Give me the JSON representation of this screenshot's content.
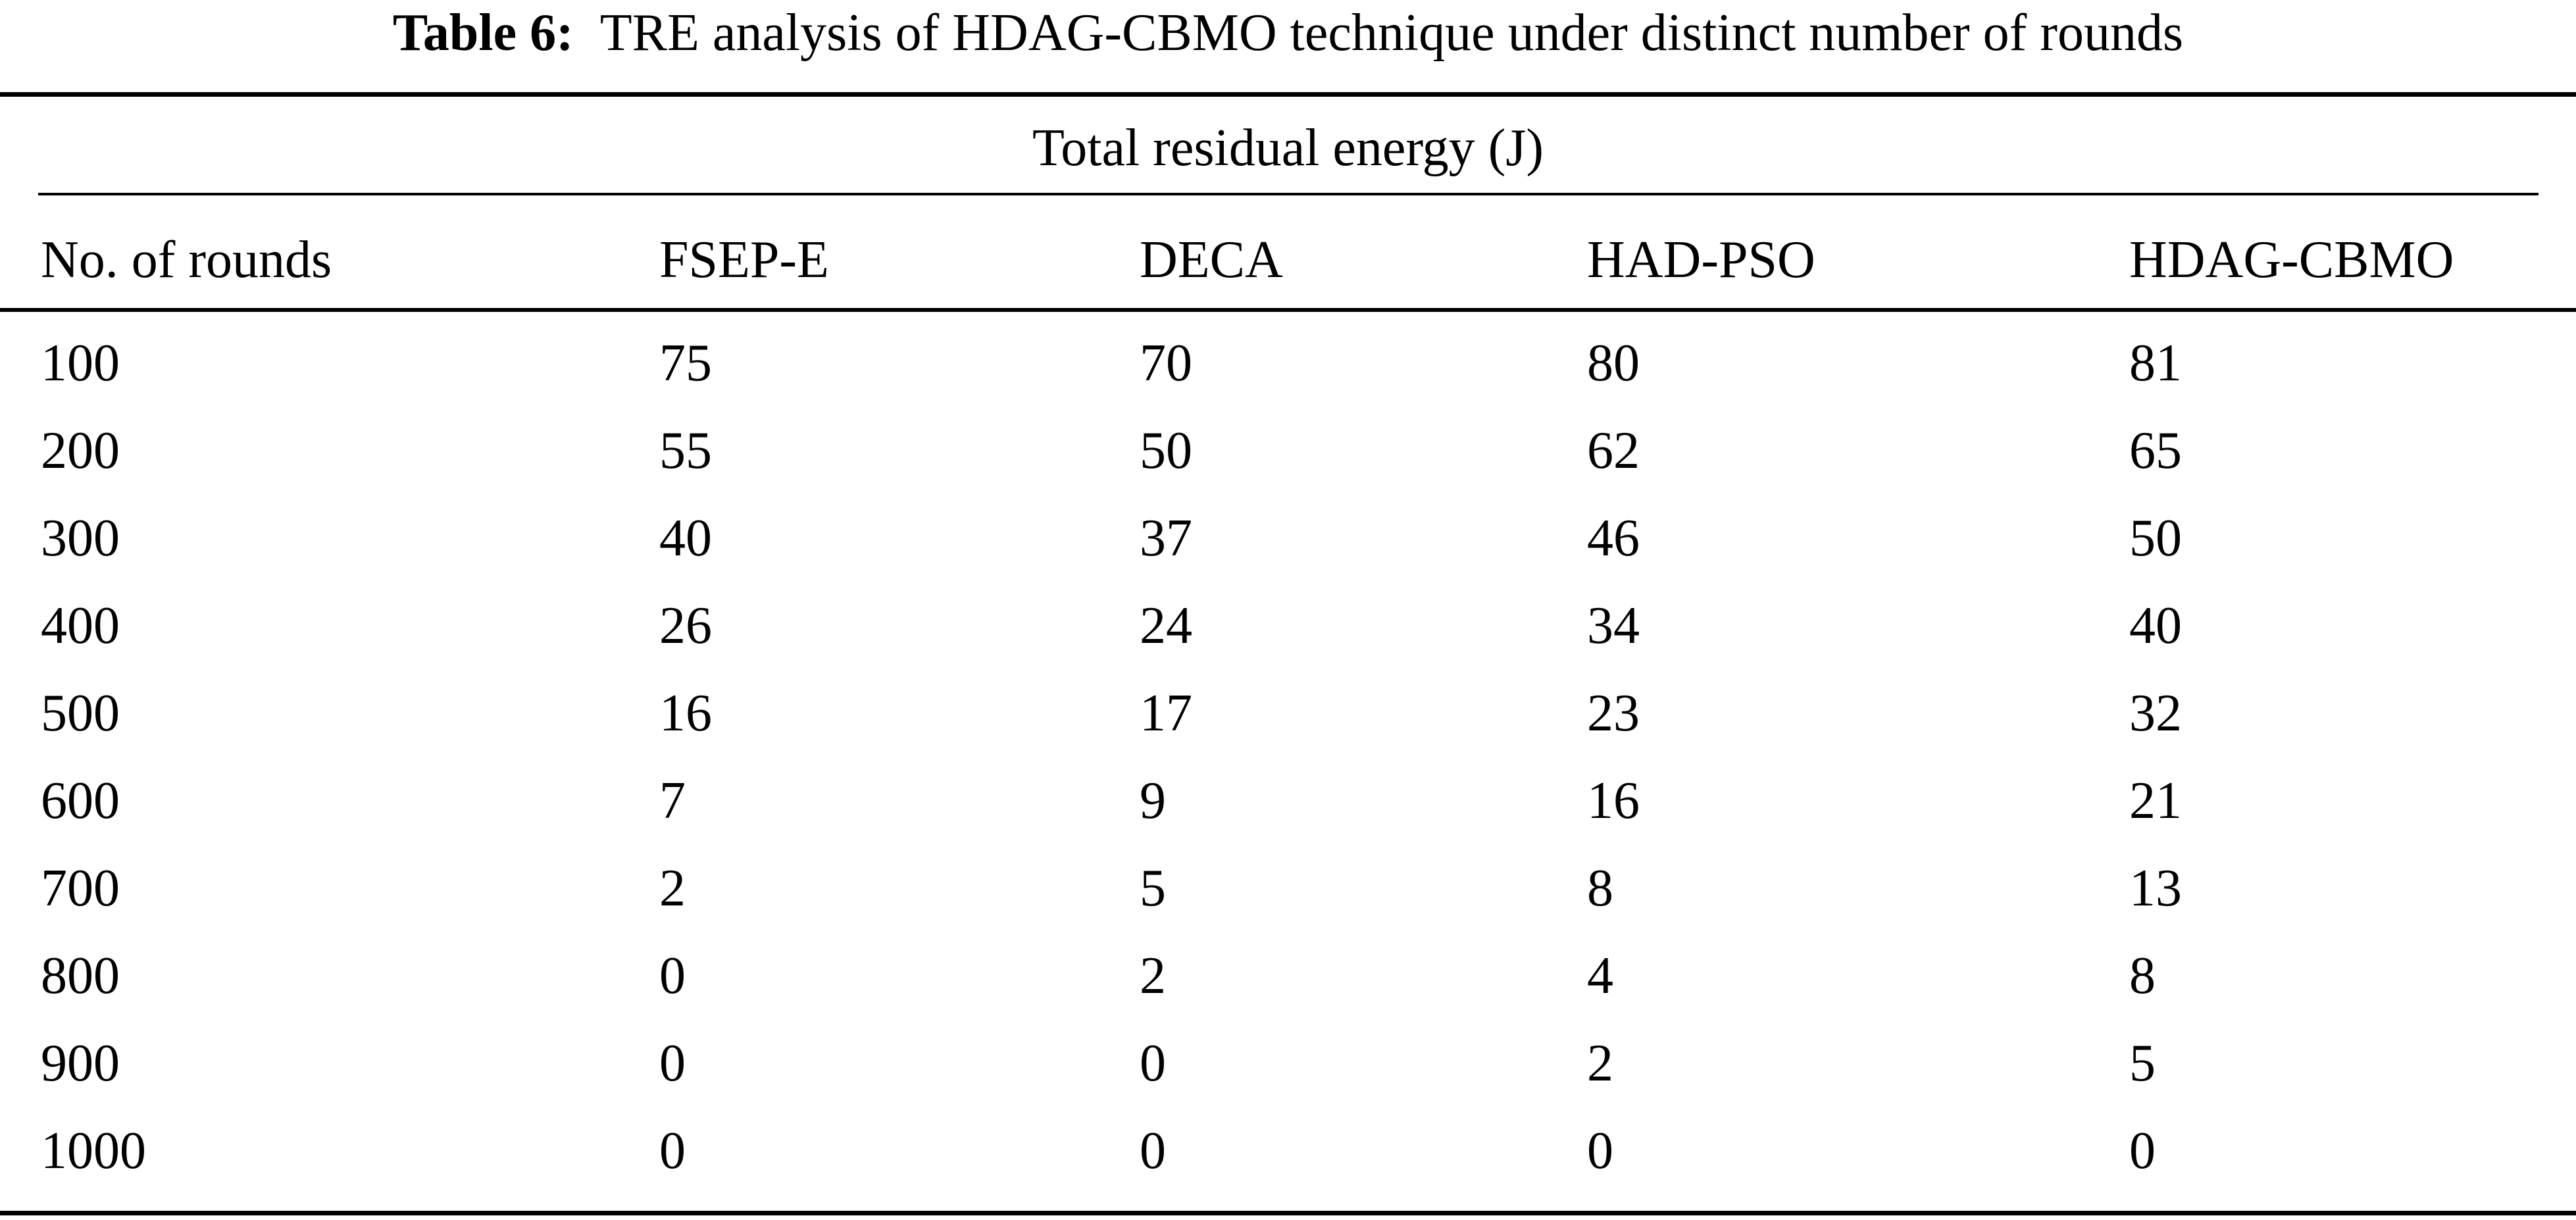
{
  "caption": {
    "label": "Table 6:",
    "text": "TRE analysis of HDAG-CBMO technique under distinct number of rounds"
  },
  "table": {
    "group_header": "Total residual energy (J)",
    "columns": [
      "No. of rounds",
      "FSEP-E",
      "DECA",
      "HAD-PSO",
      "HDAG-CBMO"
    ],
    "rows": [
      [
        "100",
        "75",
        "70",
        "80",
        "81"
      ],
      [
        "200",
        "55",
        "50",
        "62",
        "65"
      ],
      [
        "300",
        "40",
        "37",
        "46",
        "50"
      ],
      [
        "400",
        "26",
        "24",
        "34",
        "40"
      ],
      [
        "500",
        "16",
        "17",
        "23",
        "32"
      ],
      [
        "600",
        "7",
        "9",
        "16",
        "21"
      ],
      [
        "700",
        "2",
        "5",
        "8",
        "13"
      ],
      [
        "800",
        "0",
        "2",
        "4",
        "8"
      ],
      [
        "900",
        "0",
        "0",
        "2",
        "5"
      ],
      [
        "1000",
        "0",
        "0",
        "0",
        "0"
      ]
    ]
  }
}
